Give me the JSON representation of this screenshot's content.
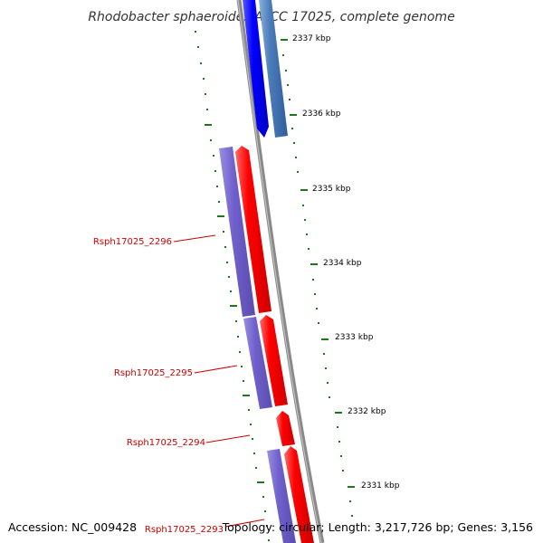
{
  "title": "Rhodobacter sphaeroides ATCC 17025, complete genome",
  "footer": {
    "accession": "Accession: NC_009428",
    "topology": "Topology: circular; Length: 3,217,726 bp; Genes: 3,156"
  },
  "ruler": [
    {
      "label": "2337 kbp"
    },
    {
      "label": "2336 kbp"
    },
    {
      "label": "2335 kbp"
    },
    {
      "label": "2334 kbp"
    },
    {
      "label": "2333 kbp"
    },
    {
      "label": "2332 kbp"
    },
    {
      "label": "2331 kbp"
    }
  ],
  "gene_labels": [
    {
      "text": "Rsph17025_2296"
    },
    {
      "text": "Rsph17025_2295"
    },
    {
      "text": "Rsph17025_2294"
    },
    {
      "text": "Rsph17025_2293"
    }
  ],
  "colors": {
    "forward_gene": "#ff0000",
    "forward_cds": "#7060cc",
    "reverse_gene": "#0000ff",
    "reverse_cds": "#4a7ab8",
    "tick": "#1a7a1a",
    "backbone": "#888888",
    "label": "#cc0000"
  }
}
